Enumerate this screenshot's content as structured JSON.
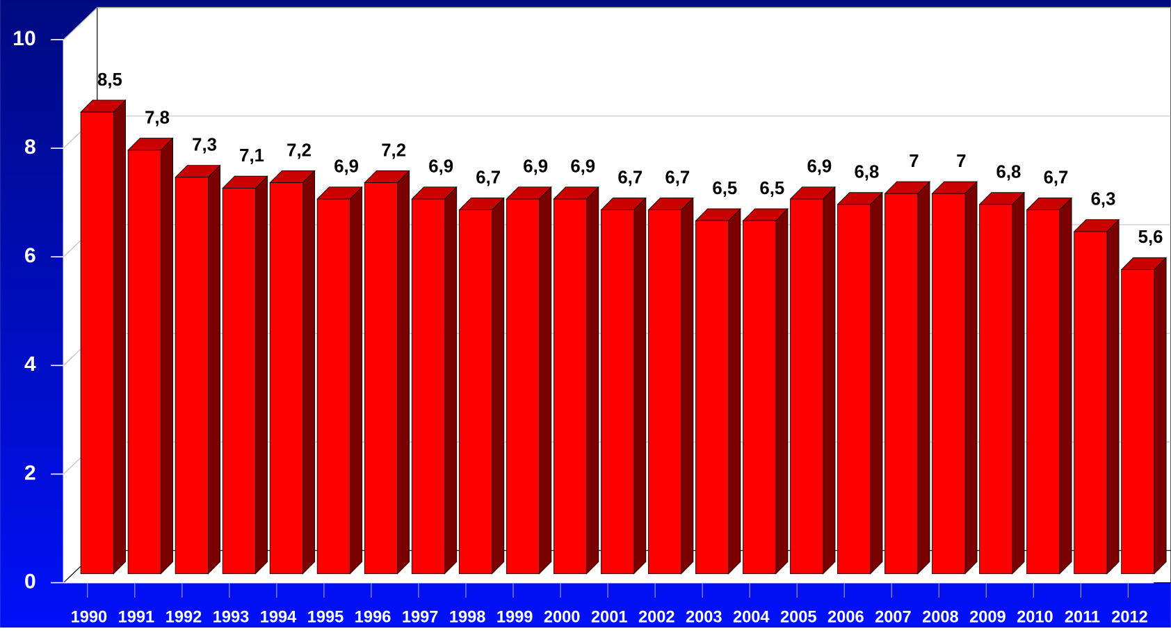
{
  "chart_data": {
    "type": "bar",
    "categories": [
      "1990",
      "1991",
      "1992",
      "1993",
      "1994",
      "1995",
      "1996",
      "1997",
      "1998",
      "1999",
      "2000",
      "2001",
      "2002",
      "2003",
      "2004",
      "2005",
      "2006",
      "2007",
      "2008",
      "2009",
      "2010",
      "2011",
      "2012"
    ],
    "values": [
      8.5,
      7.8,
      7.3,
      7.1,
      7.2,
      6.9,
      7.2,
      6.9,
      6.7,
      6.9,
      6.9,
      6.7,
      6.7,
      6.5,
      6.5,
      6.9,
      6.8,
      7,
      7,
      6.8,
      6.7,
      6.3,
      5.6
    ],
    "value_labels": [
      "8,5",
      "7,8",
      "7,3",
      "7,1",
      "7,2",
      "6,9",
      "7,2",
      "6,9",
      "6,7",
      "6,9",
      "6,9",
      "6,7",
      "6,7",
      "6,5",
      "6,5",
      "6,9",
      "6,8",
      "7",
      "7",
      "6,8",
      "6,7",
      "6,3",
      "5,6"
    ],
    "color": "#ff0000",
    "ylim": [
      0,
      10
    ],
    "yticks": [
      0,
      2,
      4,
      6,
      8,
      10
    ],
    "grid": true
  }
}
